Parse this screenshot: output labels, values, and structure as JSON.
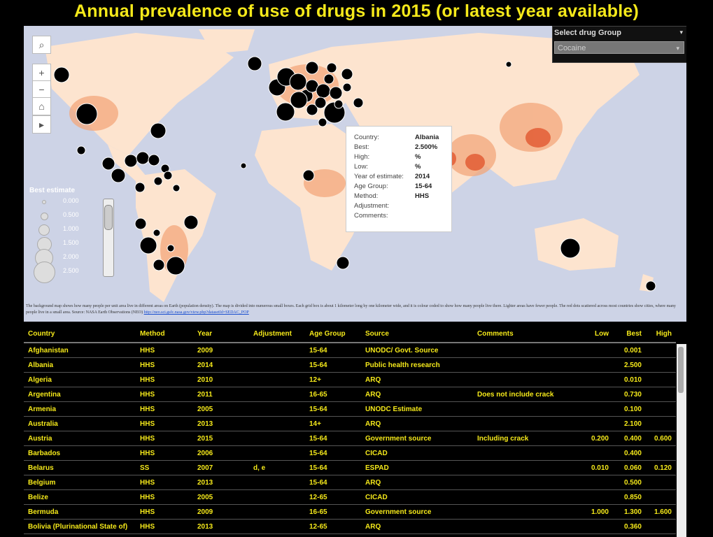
{
  "title": "Annual prevalence of use of drugs in 2015 (or latest year available)",
  "controls": {
    "zoom_in": "+",
    "zoom_out": "−",
    "home": "⌂",
    "play": "▸"
  },
  "selector": {
    "label": "Select drug Group",
    "value": "Cocaine"
  },
  "legend": {
    "title": "Best estimate",
    "values": [
      "0.000",
      "0.500",
      "1.000",
      "1.500",
      "2.000",
      "2.500"
    ]
  },
  "tooltip": {
    "rows": [
      {
        "key": "Country:",
        "value": "Albania"
      },
      {
        "key": "Best:",
        "value": "2.500%"
      },
      {
        "key": "High:",
        "value": "%"
      },
      {
        "key": "Low:",
        "value": "%"
      },
      {
        "key": "Year of estimate:",
        "value": "2014"
      },
      {
        "key": "Age Group:",
        "value": "15-64"
      },
      {
        "key": "Method:",
        "value": "HHS"
      },
      {
        "key": "Adjustment:",
        "value": ""
      },
      {
        "key": "Comments:",
        "value": ""
      }
    ]
  },
  "credit": {
    "text": "The background map shows how many people per unit area live in different areas on Earth (population density). The map is divided into numerous small boxes. Each grid box is about 1 kilometer long by one kilometer wide, and it is colour coded to show how many people live there. Lighter areas have fewer people. The red dots scattered across most countries show cities, where many people live in a small area. Source: NASA Earth Observations (NEO)",
    "link": "http://neo.sci.gsfc.nasa.gov/view.php?datasetId=SEDAC_POP"
  },
  "table": {
    "headers": [
      "Country",
      "Method",
      "Year",
      "Adjustment",
      "Age Group",
      "Source",
      "Comments",
      "Low",
      "Best",
      "High"
    ],
    "rows": [
      [
        "Afghanistan",
        "HHS",
        "2009",
        "",
        "15-64",
        "UNODC/ Govt. Source",
        "",
        "",
        "0.001",
        ""
      ],
      [
        "Albania",
        "HHS",
        "2014",
        "",
        "15-64",
        "Public health research",
        "",
        "",
        "2.500",
        ""
      ],
      [
        "Algeria",
        "HHS",
        "2010",
        "",
        "12+",
        "ARQ",
        "",
        "",
        "0.010",
        ""
      ],
      [
        "Argentina",
        "HHS",
        "2011",
        "",
        "16-65",
        "ARQ",
        "Does not include crack",
        "",
        "0.730",
        ""
      ],
      [
        "Armenia",
        "HHS",
        "2005",
        "",
        "15-64",
        "UNODC Estimate",
        "",
        "",
        "0.100",
        ""
      ],
      [
        "Australia",
        "HHS",
        "2013",
        "",
        "14+",
        "ARQ",
        "",
        "",
        "2.100",
        ""
      ],
      [
        "Austria",
        "HHS",
        "2015",
        "",
        "15-64",
        "Government source",
        "Including crack",
        "0.200",
        "0.400",
        "0.600"
      ],
      [
        "Barbados",
        "HHS",
        "2006",
        "",
        "15-64",
        "CICAD",
        "",
        "",
        "0.400",
        ""
      ],
      [
        "Belarus",
        "SS",
        "2007",
        "d, e",
        "15-64",
        "ESPAD",
        "",
        "0.010",
        "0.060",
        "0.120"
      ],
      [
        "Belgium",
        "HHS",
        "2013",
        "",
        "15-64",
        "ARQ",
        "",
        "",
        "0.500",
        ""
      ],
      [
        "Belize",
        "HHS",
        "2005",
        "",
        "12-65",
        "CICAD",
        "",
        "",
        "0.850",
        ""
      ],
      [
        "Bermuda",
        "HHS",
        "2009",
        "",
        "16-65",
        "Government source",
        "",
        "1.000",
        "1.300",
        "1.600"
      ],
      [
        "Bolivia (Plurinational State of)",
        "HHS",
        "2013",
        "",
        "12-65",
        "ARQ",
        "",
        "",
        "0.360",
        ""
      ]
    ]
  }
}
